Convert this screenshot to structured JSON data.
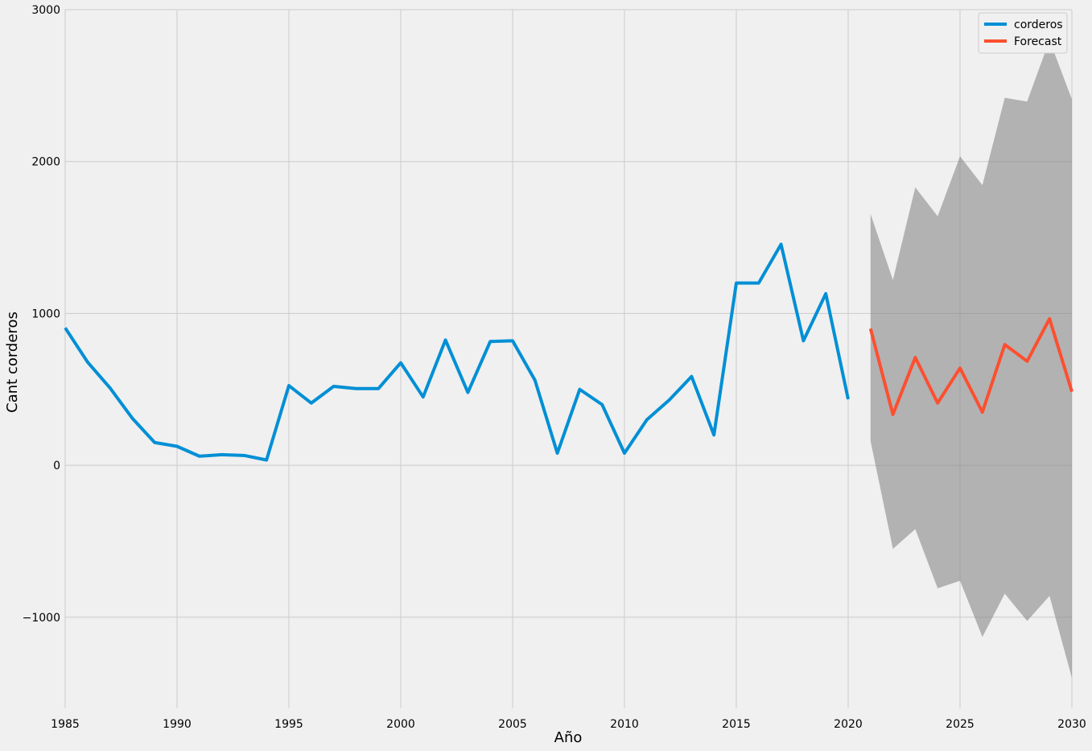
{
  "chart_data": {
    "type": "line",
    "title": "",
    "xlabel": "Año",
    "ylabel": "Cant corderos",
    "xlim": [
      1985,
      2030
    ],
    "ylim": [
      -1600,
      3000
    ],
    "x_ticks": [
      1985,
      1990,
      1995,
      2000,
      2005,
      2010,
      2015,
      2020,
      2025,
      2030
    ],
    "x_tick_labels": [
      "1985",
      "1990",
      "1995",
      "2000",
      "2005",
      "2010",
      "2015",
      "2020",
      "2025",
      "2030"
    ],
    "y_ticks": [
      -1000,
      0,
      1000,
      2000,
      3000
    ],
    "y_tick_labels": [
      "−1000",
      "0",
      "1000",
      "2000",
      "3000"
    ],
    "grid": true,
    "legend_position": "top-right",
    "series": [
      {
        "name": "corderos",
        "color": "#008fd5",
        "x": [
          1985,
          1986,
          1987,
          1988,
          1989,
          1990,
          1991,
          1992,
          1993,
          1994,
          1995,
          1996,
          1997,
          1998,
          1999,
          2000,
          2001,
          2002,
          2003,
          2004,
          2005,
          2006,
          2007,
          2008,
          2009,
          2010,
          2011,
          2012,
          2013,
          2014,
          2015,
          2016,
          2017,
          2018,
          2019,
          2020
        ],
        "values": [
          905,
          680,
          510,
          310,
          150,
          125,
          60,
          70,
          65,
          35,
          525,
          410,
          520,
          505,
          505,
          675,
          450,
          825,
          480,
          815,
          820,
          560,
          80,
          500,
          400,
          80,
          300,
          430,
          585,
          200,
          1200,
          1200,
          1455,
          820,
          1130,
          435
        ]
      },
      {
        "name": "Forecast",
        "color": "#fc4f30",
        "x": [
          2021,
          2022,
          2023,
          2024,
          2025,
          2026,
          2027,
          2028,
          2029,
          2030
        ],
        "values": [
          900,
          335,
          710,
          410,
          640,
          350,
          795,
          685,
          965,
          485
        ]
      }
    ],
    "confidence_interval": {
      "color": "#808080",
      "x": [
        2021,
        2022,
        2023,
        2024,
        2025,
        2026,
        2027,
        2028,
        2029,
        2030
      ],
      "lower": [
        160,
        -550,
        -420,
        -810,
        -760,
        -1130,
        -845,
        -1025,
        -860,
        -1400
      ],
      "upper": [
        1655,
        1220,
        1830,
        1640,
        2035,
        1845,
        2420,
        2395,
        2800,
        2410
      ]
    }
  }
}
